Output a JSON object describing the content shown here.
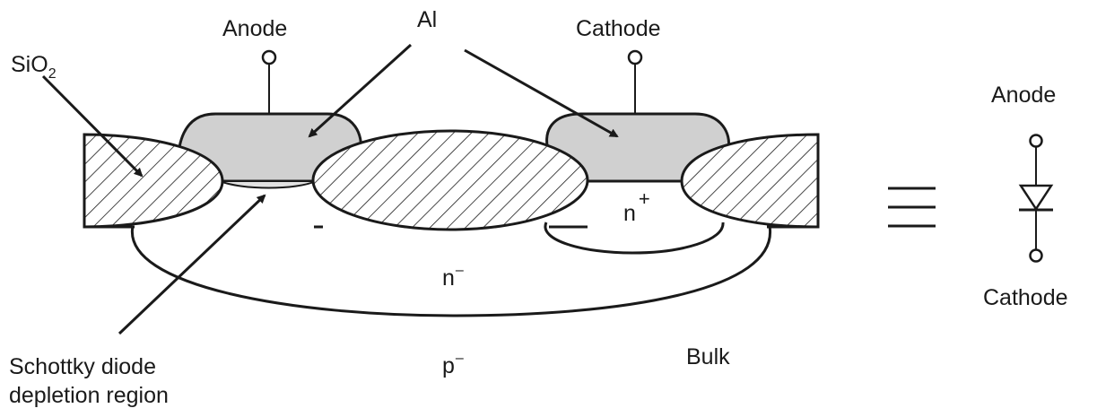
{
  "labels": {
    "sio2_base": "SiO",
    "sio2_sub": "2",
    "anode_top": "Anode",
    "al": "Al",
    "cathode_top": "Cathode",
    "n_plus_base": "n",
    "n_plus_sup": "+",
    "n_minus_base": "n",
    "n_minus_sup": "–",
    "p_minus_base": "p",
    "p_minus_sup": "–",
    "bulk": "Bulk",
    "schottky_line1": "Schottky diode",
    "schottky_line2": "depletion region"
  },
  "symbol": {
    "anode": "Anode",
    "cathode": "Cathode",
    "equivalence": "≡"
  },
  "colors": {
    "metal_fill": "#d0d0d0",
    "stroke": "#1a1a1a",
    "background": "#ffffff"
  }
}
